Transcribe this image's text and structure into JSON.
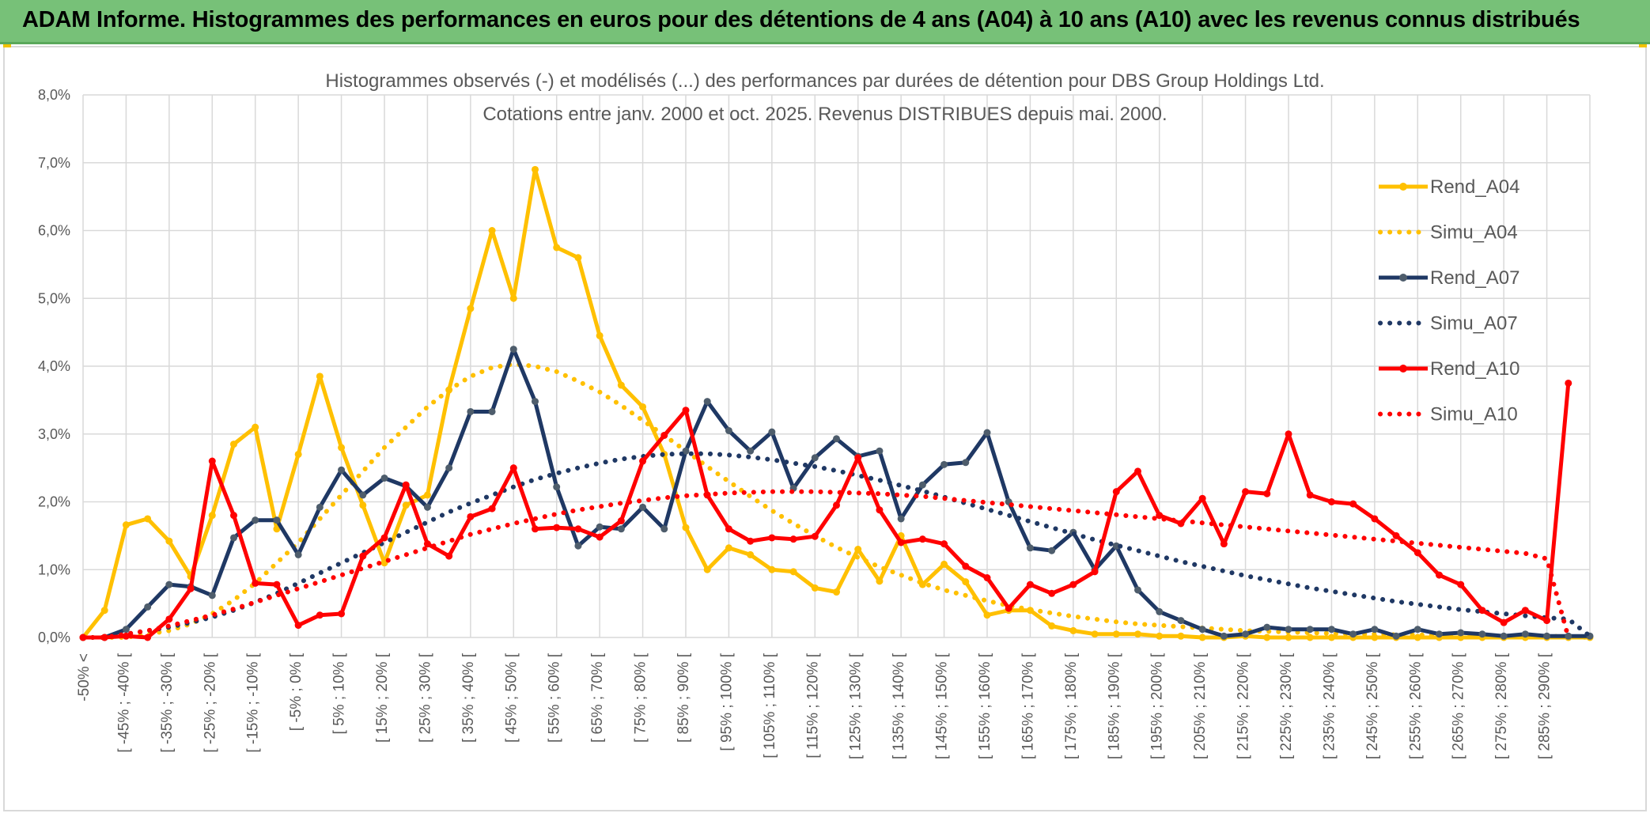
{
  "header": {
    "title": "ADAM Informe. Histogrammes des performances en euros pour des détentions de 4 ans (A04) à 10 ans (A10) avec les revenus connus distribués"
  },
  "colors": {
    "banner": "#77c178",
    "a04": "#ffc000",
    "a07": "#1f3864",
    "a10": "#ff0000",
    "grid": "#d9d9d9",
    "text": "#595959"
  },
  "chart_data": {
    "type": "line",
    "title": "Histogrammes observés (-) et modélisés (...) des performances par durées de détention pour DBS Group Holdings Ltd.",
    "subtitle": "Cotations entre janv. 2000 et oct. 2025. Revenus DISTRIBUES depuis mai. 2000.",
    "ylim": [
      0,
      8
    ],
    "yticks": [
      "0,0%",
      "1,0%",
      "2,0%",
      "3,0%",
      "4,0%",
      "5,0%",
      "6,0%",
      "7,0%",
      "8,0%"
    ],
    "legend_position": "right",
    "x_labels": [
      "-50% <",
      "[ -45% ; -40% [",
      "[ -35% ; -30% [",
      "[ -25% ; -20% [",
      "[ -15% ; -10% [",
      "[ -5% ; 0% [",
      "[ 5% ; 10% [",
      "[ 15% ; 20% [",
      "[ 25% ; 30% [",
      "[ 35% ; 40% [",
      "[ 45% ; 50% [",
      "[ 55% ; 60% [",
      "[ 65% ; 70% [",
      "[ 75% ; 80% [",
      "[ 85% ; 90% [",
      "[ 95% ; 100% [",
      "[ 105% ; 110% [",
      "[ 115% ; 120% [",
      "[ 125% ; 130% [",
      "[ 135% ; 140% [",
      "[ 145% ; 150% [",
      "[ 155% ; 160% [",
      "[ 165% ; 170% [",
      "[ 175% ; 180% [",
      "[ 185% ; 190% [",
      "[ 195% ; 200% [",
      "[ 205% ; 210% [",
      "[ 215% ; 220% [",
      "[ 225% ; 230% [",
      "[ 235% ; 240% [",
      "[ 245% ; 250% [",
      "[ 255% ; 260% [",
      "[ 265% ; 270% [",
      "[ 275% ; 280% [",
      "[ 285% ; 290% ["
    ],
    "series": [
      {
        "name": "Rend_A04",
        "style": "solid",
        "color": "#ffc000",
        "values": [
          0.0,
          0.4,
          1.66,
          1.75,
          1.42,
          0.9,
          1.8,
          2.85,
          3.1,
          1.6,
          2.7,
          3.85,
          2.8,
          1.95,
          1.1,
          1.95,
          2.1,
          3.65,
          4.85,
          6.0,
          5.0,
          6.9,
          5.75,
          5.6,
          4.45,
          3.72,
          3.4,
          2.7,
          1.62,
          1.0,
          1.32,
          1.22,
          1.0,
          0.97,
          0.73,
          0.67,
          1.3,
          0.83,
          1.5,
          0.78,
          1.08,
          0.82,
          0.33,
          0.4,
          0.4,
          0.17,
          0.1,
          0.05,
          0.05,
          0.05,
          0.02,
          0.02,
          0.0,
          0.0,
          0.02,
          0.0,
          0.0,
          0.0,
          0.0,
          0.0,
          0.0,
          0.0,
          0.0,
          0.0,
          0.0,
          0.0,
          0.0,
          0.0,
          0.0,
          0.0,
          0.0
        ]
      },
      {
        "name": "Simu_A04",
        "style": "dotted",
        "color": "#ffc000",
        "values": [
          0.0,
          0.0,
          0.0,
          0.05,
          0.1,
          0.2,
          0.35,
          0.55,
          0.8,
          1.1,
          1.4,
          1.75,
          2.1,
          2.45,
          2.8,
          3.1,
          3.4,
          3.65,
          3.85,
          3.98,
          4.03,
          4.0,
          3.92,
          3.78,
          3.62,
          3.42,
          3.2,
          2.98,
          2.75,
          2.52,
          2.3,
          2.08,
          1.87,
          1.68,
          1.5,
          1.33,
          1.18,
          1.04,
          0.92,
          0.8,
          0.7,
          0.62,
          0.54,
          0.47,
          0.41,
          0.36,
          0.31,
          0.27,
          0.23,
          0.2,
          0.18,
          0.16,
          0.14,
          0.12,
          0.1,
          0.09,
          0.08,
          0.07,
          0.06,
          0.05,
          0.05,
          0.04,
          0.04,
          0.03,
          0.03,
          0.02,
          0.02,
          0.02,
          0.02,
          0.01,
          0.0
        ]
      },
      {
        "name": "Rend_A07",
        "style": "solid",
        "color": "#1f3864",
        "values": [
          0.0,
          0.0,
          0.12,
          0.45,
          0.78,
          0.75,
          0.62,
          1.47,
          1.73,
          1.73,
          1.22,
          1.92,
          2.47,
          2.1,
          2.35,
          2.23,
          1.92,
          2.5,
          3.33,
          3.33,
          4.25,
          3.48,
          2.22,
          1.35,
          1.63,
          1.6,
          1.92,
          1.6,
          2.75,
          3.48,
          3.05,
          2.75,
          3.03,
          2.2,
          2.65,
          2.93,
          2.67,
          2.75,
          1.75,
          2.25,
          2.55,
          2.58,
          3.02,
          2.0,
          1.32,
          1.28,
          1.55,
          1.0,
          1.35,
          0.7,
          0.38,
          0.25,
          0.12,
          0.02,
          0.05,
          0.15,
          0.12,
          0.12,
          0.12,
          0.05,
          0.12,
          0.02,
          0.12,
          0.05,
          0.07,
          0.05,
          0.02,
          0.05,
          0.02,
          0.02,
          0.02
        ]
      },
      {
        "name": "Simu_A07",
        "style": "dotted",
        "color": "#1f3864",
        "values": [
          0.0,
          0.0,
          0.05,
          0.1,
          0.15,
          0.22,
          0.3,
          0.4,
          0.52,
          0.65,
          0.8,
          0.95,
          1.1,
          1.25,
          1.4,
          1.55,
          1.7,
          1.85,
          1.98,
          2.1,
          2.22,
          2.33,
          2.42,
          2.5,
          2.57,
          2.63,
          2.67,
          2.7,
          2.71,
          2.71,
          2.69,
          2.66,
          2.62,
          2.57,
          2.52,
          2.46,
          2.39,
          2.32,
          2.24,
          2.16,
          2.07,
          1.98,
          1.89,
          1.8,
          1.71,
          1.62,
          1.53,
          1.44,
          1.36,
          1.28,
          1.2,
          1.12,
          1.05,
          0.98,
          0.91,
          0.85,
          0.79,
          0.73,
          0.68,
          0.63,
          0.58,
          0.53,
          0.49,
          0.45,
          0.41,
          0.38,
          0.35,
          0.32,
          0.29,
          0.27,
          0.02
        ]
      },
      {
        "name": "Rend_A10",
        "style": "solid",
        "color": "#ff0000",
        "values": [
          0.0,
          0.0,
          0.02,
          0.0,
          0.27,
          0.72,
          2.6,
          1.8,
          0.8,
          0.78,
          0.18,
          0.33,
          0.35,
          1.2,
          1.47,
          2.25,
          1.38,
          1.2,
          1.78,
          1.9,
          2.5,
          1.6,
          1.62,
          1.6,
          1.48,
          1.72,
          2.6,
          2.98,
          3.35,
          2.1,
          1.6,
          1.42,
          1.47,
          1.45,
          1.49,
          1.95,
          2.65,
          1.88,
          1.4,
          1.45,
          1.38,
          1.05,
          0.88,
          0.43,
          0.78,
          0.65,
          0.78,
          0.97,
          2.15,
          2.45,
          1.8,
          1.68,
          2.05,
          1.38,
          2.15,
          2.12,
          3.0,
          2.1,
          2.0,
          1.97,
          1.75,
          1.5,
          1.25,
          0.92,
          0.78,
          0.4,
          0.22,
          0.4,
          0.25,
          3.75
        ]
      },
      {
        "name": "Simu_A10",
        "style": "dotted",
        "color": "#ff0000",
        "values": [
          0.0,
          0.0,
          0.05,
          0.1,
          0.17,
          0.25,
          0.33,
          0.42,
          0.52,
          0.62,
          0.72,
          0.82,
          0.92,
          1.02,
          1.12,
          1.22,
          1.32,
          1.42,
          1.52,
          1.6,
          1.68,
          1.75,
          1.82,
          1.88,
          1.93,
          1.98,
          2.02,
          2.06,
          2.09,
          2.11,
          2.13,
          2.14,
          2.15,
          2.15,
          2.15,
          2.14,
          2.13,
          2.12,
          2.1,
          2.08,
          2.05,
          2.02,
          1.99,
          1.96,
          1.93,
          1.9,
          1.87,
          1.84,
          1.81,
          1.78,
          1.75,
          1.72,
          1.69,
          1.66,
          1.63,
          1.6,
          1.57,
          1.54,
          1.51,
          1.48,
          1.45,
          1.42,
          1.39,
          1.36,
          1.33,
          1.3,
          1.27,
          1.24,
          1.16,
          0.0
        ]
      }
    ]
  }
}
